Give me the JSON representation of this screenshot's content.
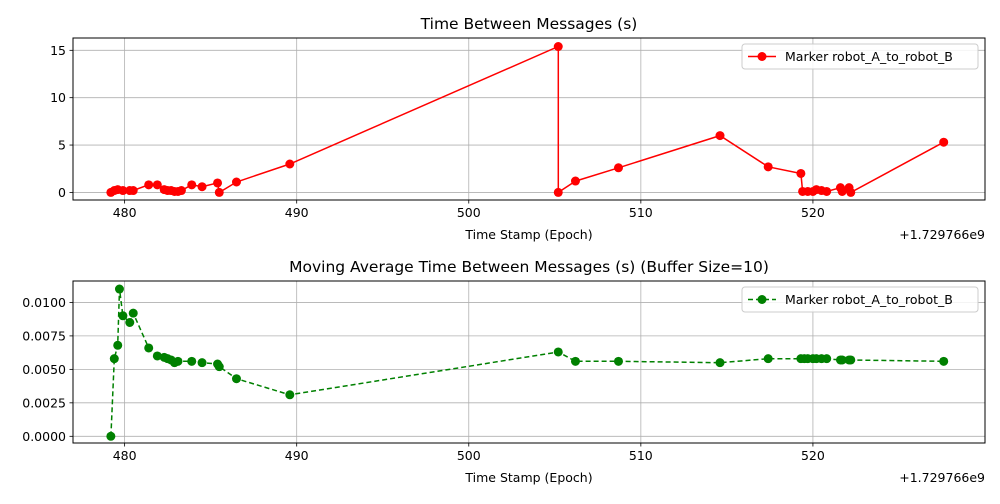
{
  "chart_data": [
    {
      "type": "line",
      "title": "Time Between Messages (s)",
      "xlabel": "Time Stamp (Epoch)",
      "ylabel": "",
      "x_offset_label": "+1.729766e9",
      "xlim": [
        477,
        530
      ],
      "ylim": [
        -0.8,
        16.3
      ],
      "xticks": [
        480,
        490,
        500,
        510,
        520
      ],
      "yticks": [
        0,
        5,
        10,
        15
      ],
      "grid": true,
      "legend": "top-right",
      "series": [
        {
          "name": "Marker robot_A_to_robot_B",
          "color": "#ff0000",
          "dashed": false,
          "x": [
            479.2,
            479.4,
            479.6,
            479.9,
            480.3,
            480.5,
            481.4,
            481.9,
            482.3,
            482.5,
            482.7,
            482.9,
            483.1,
            483.3,
            483.9,
            484.5,
            485.4,
            485.5,
            486.5,
            489.6,
            505.2,
            505.2,
            506.2,
            508.7,
            514.6,
            517.4,
            519.3,
            519.4,
            519.7,
            520.0,
            520.2,
            520.5,
            520.8,
            521.6,
            521.7,
            522.1,
            522.2,
            527.6
          ],
          "y": [
            0.0,
            0.2,
            0.3,
            0.2,
            0.2,
            0.2,
            0.8,
            0.8,
            0.3,
            0.2,
            0.2,
            0.1,
            0.1,
            0.2,
            0.8,
            0.6,
            1.0,
            0.0,
            1.1,
            3.0,
            15.4,
            0.0,
            1.2,
            2.6,
            6.0,
            2.7,
            2.0,
            0.1,
            0.1,
            0.1,
            0.3,
            0.2,
            0.1,
            0.5,
            0.1,
            0.5,
            0.0,
            5.3
          ]
        }
      ]
    },
    {
      "type": "line",
      "title": "Moving Average Time Between Messages (s) (Buffer Size=10)",
      "xlabel": "Time Stamp (Epoch)",
      "ylabel": "",
      "x_offset_label": "+1.729766e9",
      "xlim": [
        477,
        530
      ],
      "ylim": [
        -0.0005,
        0.0116
      ],
      "xticks": [
        480,
        490,
        500,
        510,
        520
      ],
      "ytick_labels": [
        "0.0000",
        "0.0025",
        "0.0050",
        "0.0075",
        "0.0100"
      ],
      "yticks": [
        0,
        0.0025,
        0.005,
        0.0075,
        0.01
      ],
      "grid": true,
      "legend": "top-right",
      "series": [
        {
          "name": "Marker robot_A_to_robot_B",
          "color": "#008000",
          "dashed": true,
          "x": [
            479.2,
            479.4,
            479.6,
            479.7,
            479.9,
            480.3,
            480.5,
            481.4,
            481.9,
            482.3,
            482.5,
            482.7,
            482.9,
            483.1,
            483.9,
            484.5,
            485.4,
            485.5,
            486.5,
            489.6,
            505.2,
            506.2,
            508.7,
            514.6,
            517.4,
            519.3,
            519.5,
            519.7,
            520.0,
            520.2,
            520.5,
            520.8,
            521.6,
            521.7,
            522.1,
            522.2,
            527.6
          ],
          "y": [
            0.0,
            0.0058,
            0.0068,
            0.011,
            0.009,
            0.0085,
            0.0092,
            0.0066,
            0.006,
            0.0059,
            0.0058,
            0.0057,
            0.0055,
            0.0056,
            0.0056,
            0.0055,
            0.0054,
            0.0052,
            0.0043,
            0.0031,
            0.0063,
            0.0056,
            0.0056,
            0.0055,
            0.0058,
            0.0058,
            0.0058,
            0.0058,
            0.0058,
            0.0058,
            0.0058,
            0.0058,
            0.0057,
            0.0057,
            0.0057,
            0.0057,
            0.0056
          ]
        }
      ]
    }
  ]
}
